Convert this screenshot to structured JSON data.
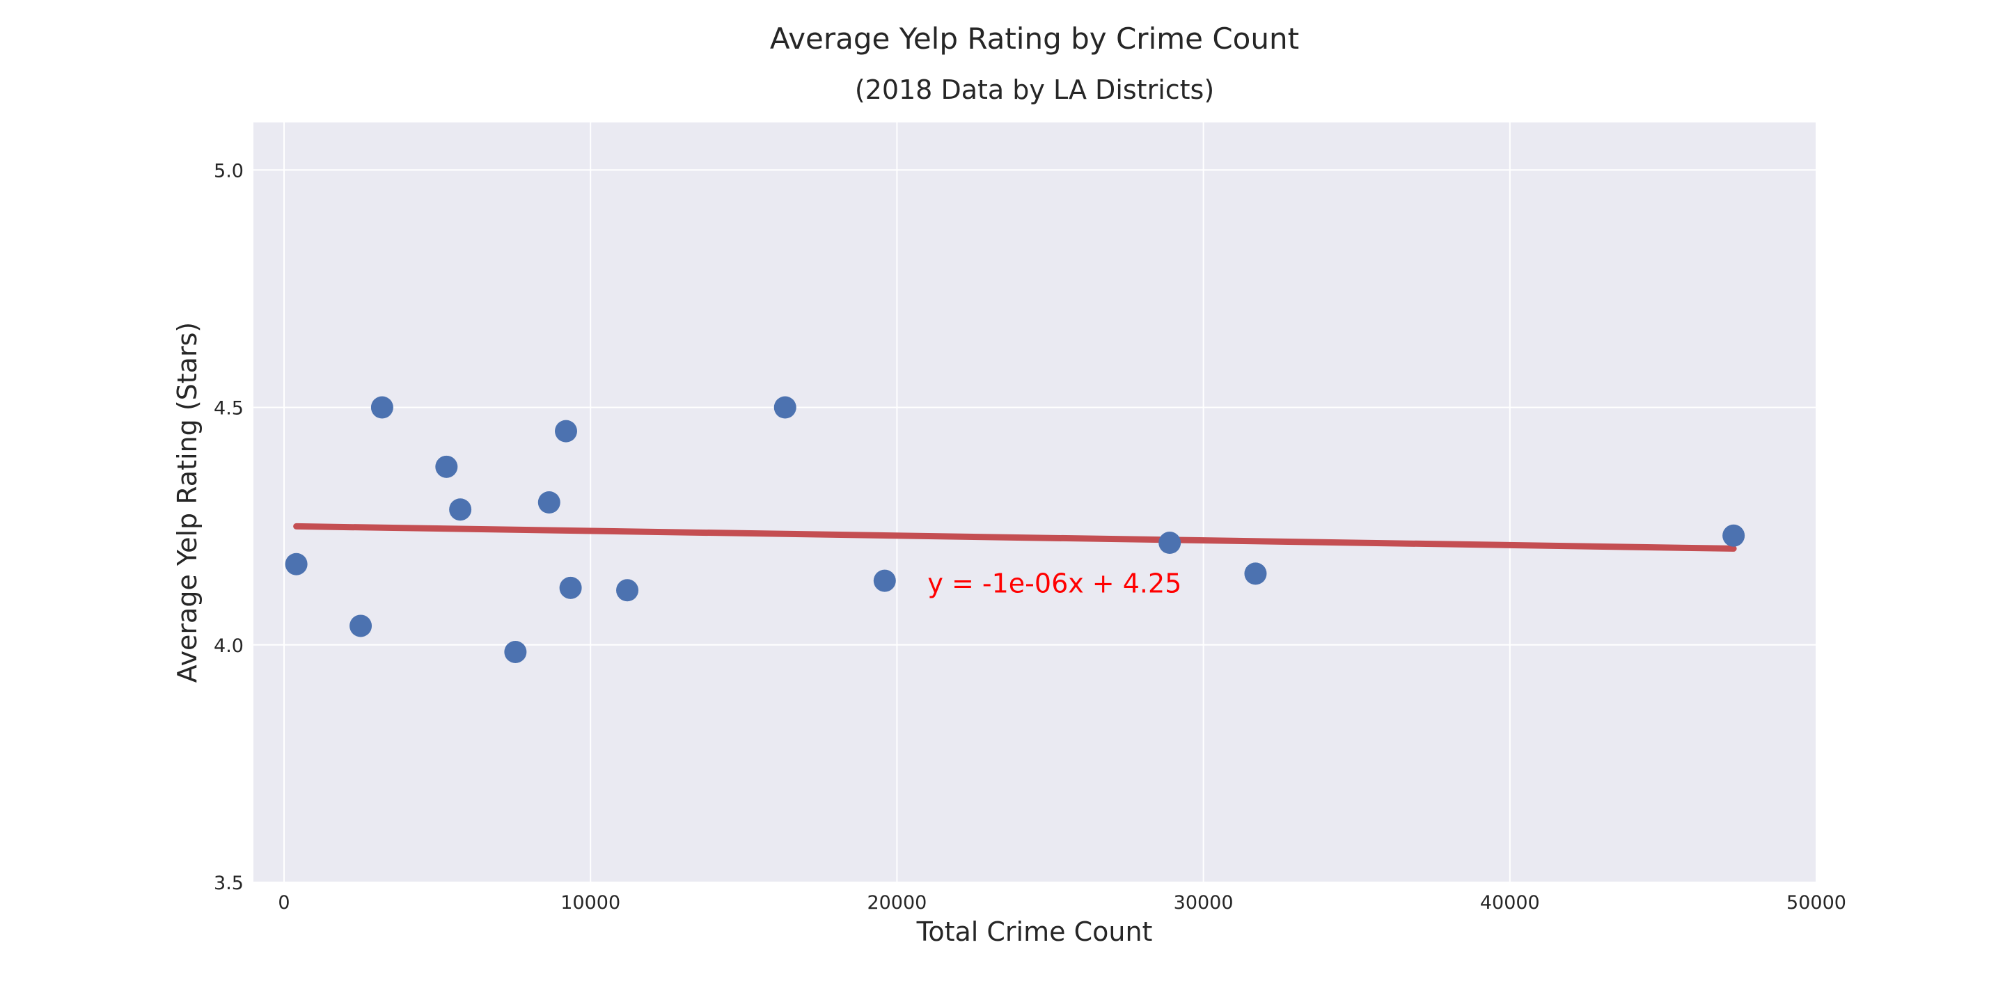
{
  "chart_data": {
    "type": "scatter",
    "title": "Average Yelp Rating by Crime Count",
    "subtitle": "(2018 Data by LA Districts)",
    "xlabel": "Total Crime Count",
    "ylabel": "Average Yelp Rating (Stars)",
    "xlim": [
      -1000,
      50000
    ],
    "ylim": [
      3.5,
      5.1
    ],
    "xticks": [
      0,
      10000,
      20000,
      30000,
      40000,
      50000
    ],
    "yticks": [
      3.5,
      4.0,
      4.5,
      5.0
    ],
    "xtick_labels": [
      "0",
      "10000",
      "20000",
      "30000",
      "40000",
      "50000"
    ],
    "ytick_labels": [
      "3.5",
      "4.0",
      "4.5",
      "5.0"
    ],
    "grid": true,
    "background": "#eaeaf2",
    "point_color": "#4c72b0",
    "line_color": "#c44e52",
    "annotation_color": "#ff0000",
    "points": [
      {
        "x": 400,
        "y": 4.17
      },
      {
        "x": 2500,
        "y": 4.04
      },
      {
        "x": 3200,
        "y": 4.5
      },
      {
        "x": 5300,
        "y": 4.375
      },
      {
        "x": 5750,
        "y": 4.285
      },
      {
        "x": 7550,
        "y": 3.985
      },
      {
        "x": 8650,
        "y": 4.3
      },
      {
        "x": 9200,
        "y": 4.45
      },
      {
        "x": 9350,
        "y": 4.12
      },
      {
        "x": 11200,
        "y": 4.115
      },
      {
        "x": 16350,
        "y": 4.5
      },
      {
        "x": 19600,
        "y": 4.135
      },
      {
        "x": 28900,
        "y": 4.215
      },
      {
        "x": 31700,
        "y": 4.15
      },
      {
        "x": 47300,
        "y": 4.23
      }
    ],
    "regression": {
      "slope": -1e-06,
      "intercept": 4.25,
      "x_start": 400,
      "x_end": 47300,
      "label": "y = -1e-06x + 4.25",
      "label_x": 21000,
      "label_y": 4.11
    }
  }
}
